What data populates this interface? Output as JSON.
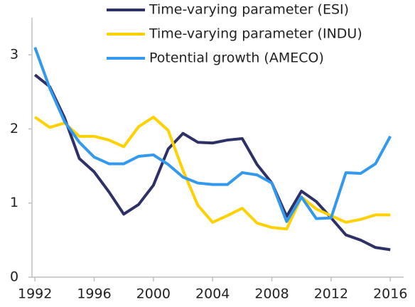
{
  "chart_data": {
    "type": "line",
    "x": [
      1992,
      1993,
      1994,
      1995,
      1996,
      1997,
      1998,
      1999,
      2000,
      2001,
      2002,
      2003,
      2004,
      2005,
      2006,
      2007,
      2008,
      2009,
      2010,
      2011,
      2012,
      2013,
      2014,
      2015,
      2016
    ],
    "series": [
      {
        "name": "Time-varying parameter (ESI)",
        "color": "#2e3168",
        "values": [
          2.73,
          2.57,
          2.15,
          1.6,
          1.42,
          1.15,
          0.85,
          0.98,
          1.24,
          1.73,
          1.94,
          1.82,
          1.81,
          1.85,
          1.87,
          1.52,
          1.27,
          0.82,
          1.16,
          1.02,
          0.8,
          0.57,
          0.5,
          0.4,
          0.37
        ]
      },
      {
        "name": "Time-varying parameter (INDU)",
        "color": "#ffd100",
        "values": [
          2.16,
          2.02,
          2.08,
          1.9,
          1.9,
          1.85,
          1.76,
          2.03,
          2.16,
          1.98,
          1.44,
          0.97,
          0.74,
          0.83,
          0.93,
          0.73,
          0.67,
          0.65,
          1.08,
          0.92,
          0.83,
          0.74,
          0.78,
          0.84,
          0.84
        ]
      },
      {
        "name": "Potential growth (AMECO)",
        "color": "#3399ee",
        "values": [
          3.1,
          2.55,
          2.1,
          1.82,
          1.62,
          1.53,
          1.53,
          1.63,
          1.65,
          1.52,
          1.35,
          1.27,
          1.25,
          1.25,
          1.41,
          1.38,
          1.27,
          0.75,
          1.08,
          0.79,
          0.8,
          1.41,
          1.4,
          1.53,
          1.9
        ]
      }
    ],
    "xlim": [
      1991.8,
      2016.9
    ],
    "xticks": [
      1992,
      1996,
      2000,
      2004,
      2008,
      2012,
      2016
    ],
    "ylim": [
      0,
      3.5
    ],
    "yticks": [
      0,
      1,
      2,
      3
    ]
  }
}
